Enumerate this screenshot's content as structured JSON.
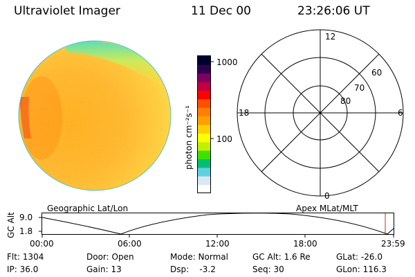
{
  "header": {
    "title": "Ultraviolet Imager",
    "date": "11 Dec 00",
    "time": "23:26:06 UT"
  },
  "colorbar": {
    "unit_label": "photon cm⁻²s⁻¹",
    "ticks": [
      "1000",
      "100"
    ],
    "colors": [
      "#ffffff",
      "#d8e8f0",
      "#60d0e0",
      "#00c070",
      "#40e000",
      "#c0f000",
      "#ffff00",
      "#ffd000",
      "#ffa000",
      "#ff8000",
      "#ff5000",
      "#ff0000",
      "#c00040",
      "#800060",
      "#300050",
      "#000030"
    ]
  },
  "polar": {
    "mlt_labels": [
      "12",
      "18",
      "6",
      "0"
    ],
    "lat_labels": [
      "60",
      "70",
      "80"
    ]
  },
  "track": {
    "left_label": "Geographic Lat/Lon",
    "right_label": "Apex MLat/MLT",
    "ylabel": "GC Alt",
    "y_ticks": [
      "9.0",
      "1.8"
    ],
    "time_ticks": [
      "00:00",
      "06:00",
      "12:00",
      "18:00",
      "23:59"
    ]
  },
  "info": {
    "flt": "Flt: 1304",
    "ip": "IP: 36.0",
    "door": "Door: Open",
    "gain": "Gain: 13",
    "mode": "Mode: Normal",
    "dsp": "Dsp:    -3.2",
    "gcalt": "GC Alt: 1.6 Re",
    "seq": "Seq: 30",
    "glat": "GLat: -26.0",
    "glon": "GLon: 116.3"
  }
}
